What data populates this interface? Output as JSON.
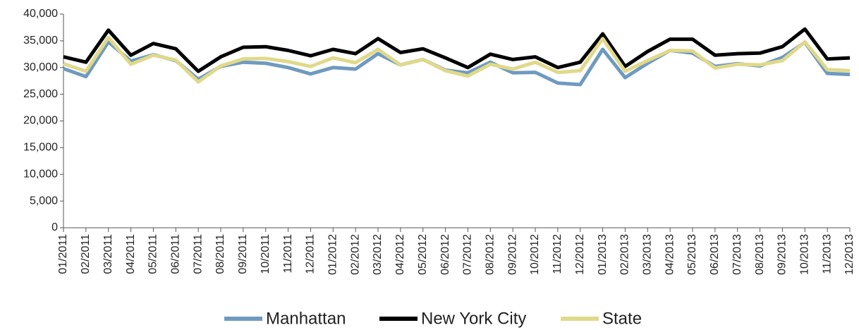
{
  "chart_data": {
    "type": "line",
    "categories": [
      "01/2011",
      "02/2011",
      "03/2011",
      "04/2011",
      "05/2011",
      "06/2011",
      "07/2011",
      "08/2011",
      "09/2011",
      "10/2011",
      "11/2011",
      "12/2011",
      "01/2012",
      "02/2012",
      "03/2012",
      "04/2012",
      "05/2012",
      "06/2012",
      "07/2012",
      "08/2012",
      "09/2012",
      "10/2012",
      "11/2012",
      "12/2012",
      "01/2013",
      "02/2013",
      "03/2013",
      "04/2013",
      "05/2013",
      "06/2013",
      "07/2013",
      "08/2013",
      "09/2013",
      "10/2013",
      "11/2013",
      "12/2013"
    ],
    "series": [
      {
        "name": "Manhattan",
        "color": "#6f9ac0",
        "values": [
          29800,
          28300,
          34800,
          31200,
          32400,
          31300,
          27800,
          30200,
          31000,
          30800,
          30000,
          28800,
          30000,
          29700,
          32600,
          30500,
          31500,
          29500,
          29000,
          31000,
          29000,
          29100,
          27100,
          26800,
          33400,
          28100,
          30800,
          33200,
          32700,
          30200,
          30700,
          30300,
          31900,
          34700,
          28900,
          28700
        ]
      },
      {
        "name": "New York City",
        "color": "#000000",
        "values": [
          32000,
          31000,
          37000,
          32300,
          34500,
          33500,
          29300,
          32000,
          33800,
          33900,
          33200,
          32200,
          33400,
          32600,
          35400,
          32800,
          33500,
          31800,
          30000,
          32500,
          31500,
          32000,
          30000,
          31000,
          36300,
          30200,
          33000,
          35300,
          35300,
          32300,
          32600,
          32700,
          33900,
          37200,
          31600,
          31800
        ]
      },
      {
        "name": "State",
        "color": "#e0d98a",
        "values": [
          30700,
          29300,
          35600,
          30600,
          32300,
          31400,
          27300,
          30300,
          31600,
          31700,
          31100,
          30200,
          31800,
          30900,
          33400,
          30500,
          31500,
          29400,
          28400,
          30600,
          29700,
          31000,
          29100,
          29400,
          35400,
          29300,
          31300,
          33200,
          33100,
          29900,
          30600,
          30500,
          31300,
          34800,
          29600,
          29400
        ]
      }
    ],
    "ylim": [
      0,
      40000
    ],
    "yticks": [
      0,
      {
        "value": 5000,
        "label": "5,000"
      },
      {
        "value": 10000,
        "label": "10,000"
      },
      {
        "value": 15000,
        "label": "15,000"
      },
      {
        "value": 20000,
        "label": "20,000"
      },
      {
        "value": 25000,
        "label": "25,000"
      },
      {
        "value": 30000,
        "label": "30,000"
      },
      {
        "value": 35000,
        "label": "35,000"
      },
      {
        "value": 40000,
        "label": "40,000"
      }
    ],
    "grid": false
  }
}
